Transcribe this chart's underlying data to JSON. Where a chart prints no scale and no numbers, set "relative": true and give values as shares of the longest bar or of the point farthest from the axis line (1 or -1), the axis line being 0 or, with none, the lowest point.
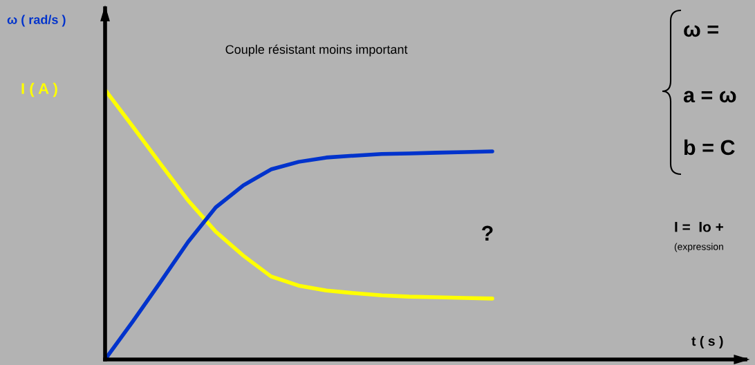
{
  "chart_data": {
    "type": "line",
    "title": "Couple résistant moins important",
    "relative": true,
    "legend": false,
    "marker": "none",
    "line_style": "solid",
    "categories": [
      null,
      null,
      null,
      null,
      null,
      null,
      null,
      null,
      null,
      null,
      null,
      null,
      null,
      null,
      null
    ],
    "series": [
      {
        "name": "I ( A )",
        "color": "#ffff00",
        "values": [
          1,
          0.864,
          0.726,
          0.59,
          0.474,
          0.385,
          0.308,
          0.274,
          0.256,
          0.246,
          0.238,
          0.233,
          0.231,
          0.228,
          0.226
        ]
      },
      {
        "name": "ω ( rad/s )",
        "color": "#0033cc",
        "values": [
          0,
          0.141,
          0.287,
          0.436,
          0.564,
          0.646,
          0.705,
          0.733,
          0.749,
          0.756,
          0.762,
          0.764,
          0.767,
          0.769,
          0.772
        ]
      }
    ],
    "annotations": [
      "?",
      "ω =",
      "a = ω",
      "b = C",
      "I =  Io +",
      "(expression",
      "t ( s )"
    ]
  }
}
